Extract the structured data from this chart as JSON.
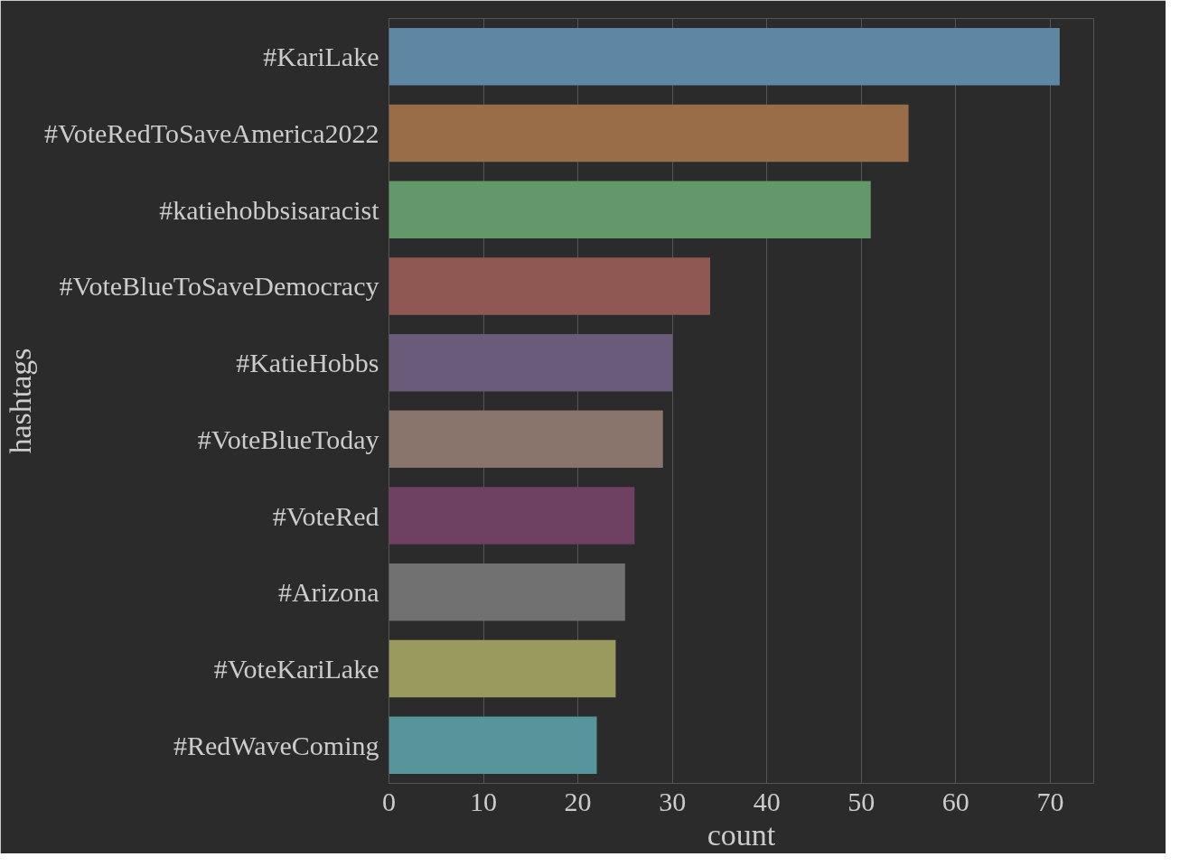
{
  "chart_data": {
    "type": "bar",
    "orientation": "horizontal",
    "xlabel": "count",
    "ylabel": "hashtags",
    "categories": [
      "#KariLake",
      "#VoteRedToSaveAmerica2022",
      "#katiehobbsisaracist",
      "#VoteBlueToSaveDemocracy",
      "#KatieHobbs",
      "#VoteBlueToday",
      "#VoteRed",
      "#Arizona",
      "#VoteKariLake",
      "#RedWaveComing"
    ],
    "values": [
      71,
      55,
      51,
      34,
      30,
      29,
      26,
      25,
      24,
      22
    ],
    "colors": [
      "#5e87a3",
      "#986d47",
      "#63996a",
      "#8f5853",
      "#6b5b7b",
      "#8a756d",
      "#6e4062",
      "#717171",
      "#999a5e",
      "#55959b"
    ],
    "xlim": [
      0,
      74.6
    ],
    "xticks": [
      0,
      10,
      20,
      30,
      40,
      50,
      60,
      70
    ],
    "grid": "x"
  }
}
